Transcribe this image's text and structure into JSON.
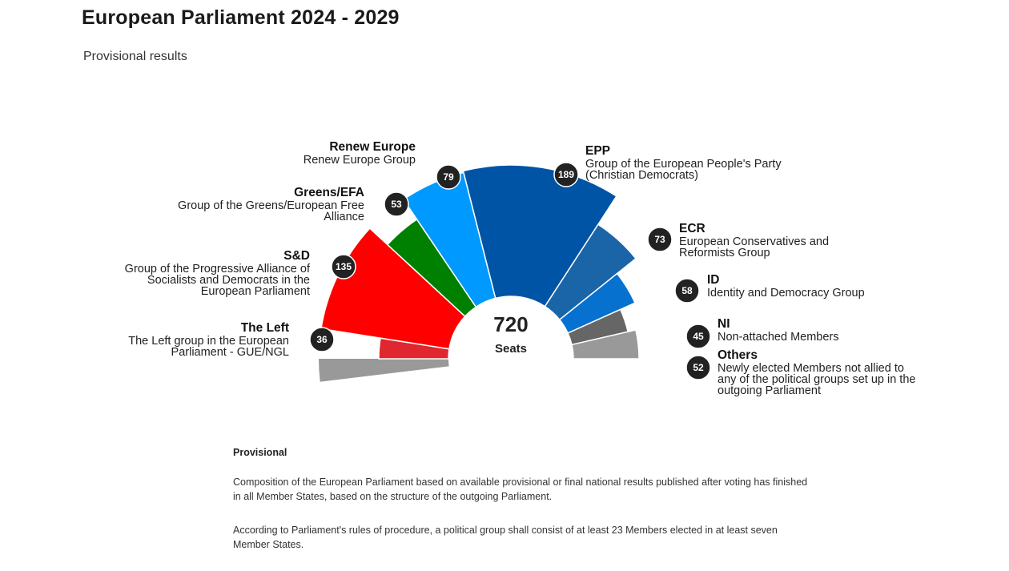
{
  "title": "European Parliament 2024 - 2029",
  "subtitle": "Provisional results",
  "chart_data": {
    "type": "parliament-hemicycle",
    "total_seats": 720,
    "total_label": "Seats",
    "groups": [
      {
        "id": "left",
        "name": "The Left",
        "full_name": "The Left group in the European Parliament - GUE/NGL",
        "seats": 36,
        "color": "#e0262f"
      },
      {
        "id": "sd",
        "name": "S&D",
        "full_name": "Group of the Progressive Alliance of Socialists and Democrats in the European Parliament",
        "seats": 135,
        "color": "#ff0000"
      },
      {
        "id": "greens",
        "name": "Greens/EFA",
        "full_name": "Group of the Greens/European Free Alliance",
        "seats": 53,
        "color": "#008000"
      },
      {
        "id": "renew",
        "name": "Renew Europe",
        "full_name": "Renew Europe Group",
        "seats": 79,
        "color": "#0099ff"
      },
      {
        "id": "epp",
        "name": "EPP",
        "full_name": "Group of the European People's Party (Christian Democrats)",
        "seats": 189,
        "color": "#0054a5"
      },
      {
        "id": "ecr",
        "name": "ECR",
        "full_name": "European Conservatives and Reformists Group",
        "seats": 73,
        "color": "#1a65a8"
      },
      {
        "id": "id",
        "name": "ID",
        "full_name": "Identity and Democracy Group",
        "seats": 58,
        "color": "#0771cf"
      },
      {
        "id": "ni",
        "name": "NI",
        "full_name": "Non-attached Members",
        "seats": 45,
        "color": "#666666"
      },
      {
        "id": "others",
        "name": "Others",
        "full_name": "Newly elected Members not allied to any of the political groups set up in the outgoing Parliament",
        "seats": 52,
        "color": "#999999"
      }
    ]
  },
  "notes": {
    "heading": "Provisional",
    "paragraph1": "Composition of the European Parliament based on available provisional or final national results published after voting has finished in all Member States, based on the structure of the outgoing Parliament.",
    "paragraph2": "According to Parliament's rules of procedure, a political group shall consist of at least 23 Members elected in at least seven Member States."
  }
}
